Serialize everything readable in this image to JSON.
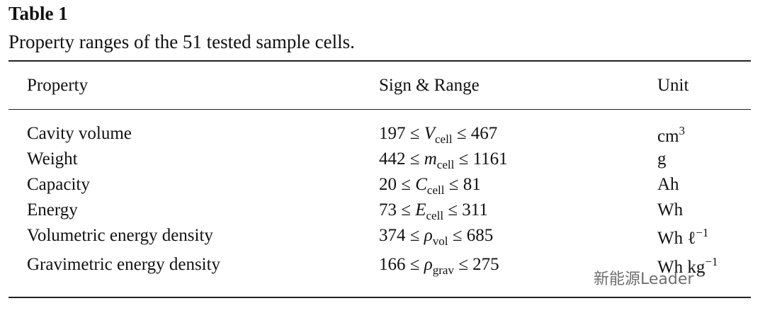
{
  "title": "Table 1",
  "caption": "Property ranges of the 51 tested sample cells.",
  "table": {
    "header": [
      "Property",
      "Sign & Range",
      "Unit"
    ],
    "rows": [
      {
        "property": "Cavity volume",
        "range": {
          "before": "197 ≤ ",
          "symbol": "V",
          "sub": "cell",
          "after": " ≤ 467"
        },
        "unit": {
          "text": "cm",
          "sup": "3"
        }
      },
      {
        "property": "Weight",
        "range": {
          "before": "442 ≤ ",
          "symbol": "m",
          "sub": "cell",
          "after": " ≤ 1161"
        },
        "unit": {
          "text": "g"
        }
      },
      {
        "property": "Capacity",
        "range": {
          "before": "20 ≤ ",
          "symbol": "C",
          "sub": "cell",
          "after": " ≤ 81"
        },
        "unit": {
          "text": "Ah"
        }
      },
      {
        "property": "Energy",
        "range": {
          "before": "73 ≤ ",
          "symbol": "E",
          "sub": "cell",
          "after": " ≤ 311"
        },
        "unit": {
          "text": "Wh"
        }
      },
      {
        "property": "Volumetric energy density",
        "range": {
          "before": "374 ≤ ",
          "symbol": "ρ",
          "sub": "vol",
          "after": " ≤ 685"
        },
        "unit": {
          "text": "Wh ℓ",
          "sup": "−1"
        }
      },
      {
        "property": "Gravimetric energy density",
        "range": {
          "before": "166 ≤ ",
          "symbol": "ρ",
          "sub": "grav",
          "after": " ≤ 275"
        },
        "unit": {
          "text": "Wh kg",
          "sup": "−1"
        }
      }
    ]
  },
  "watermark": "新能源Leader"
}
